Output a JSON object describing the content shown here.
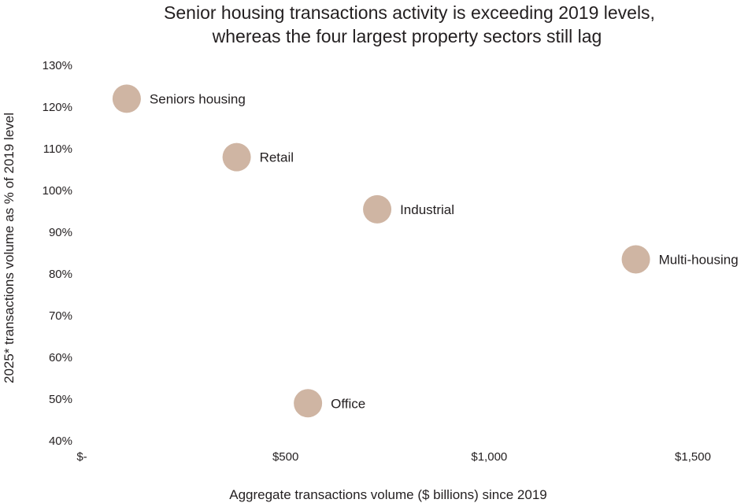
{
  "chart_data": {
    "type": "scatter",
    "title": [
      "Senior housing transactions activity is exceeding 2019 levels,",
      "whereas the four largest property sectors still lag"
    ],
    "xlabel": "Aggregate transactions volume ($ billions) since 2019",
    "ylabel": "2025* transactions volume as % of 2019 level",
    "xlim": [
      0,
      1550
    ],
    "ylim": [
      40,
      130
    ],
    "x_ticks": [
      {
        "value": 0,
        "label": "$-"
      },
      {
        "value": 500,
        "label": "$500"
      },
      {
        "value": 1000,
        "label": "$1,000"
      },
      {
        "value": 1500,
        "label": "$1,500"
      }
    ],
    "y_ticks": [
      {
        "value": 130,
        "label": "130%"
      },
      {
        "value": 120,
        "label": "120%"
      },
      {
        "value": 110,
        "label": "110%"
      },
      {
        "value": 100,
        "label": "100%"
      },
      {
        "value": 90,
        "label": "90%"
      },
      {
        "value": 80,
        "label": "80%"
      },
      {
        "value": 70,
        "label": "70%"
      },
      {
        "value": 60,
        "label": "60%"
      },
      {
        "value": 50,
        "label": "50%"
      },
      {
        "value": 40,
        "label": "40%"
      }
    ],
    "grid": false,
    "marker_color": "#cfb5a3",
    "points": [
      {
        "name": "Seniors housing",
        "x": 110,
        "y": 122
      },
      {
        "name": "Retail",
        "x": 380,
        "y": 108
      },
      {
        "name": "Industrial",
        "x": 725,
        "y": 95.5
      },
      {
        "name": "Multi-housing",
        "x": 1360,
        "y": 83.5
      },
      {
        "name": "Office",
        "x": 555,
        "y": 49
      }
    ]
  }
}
